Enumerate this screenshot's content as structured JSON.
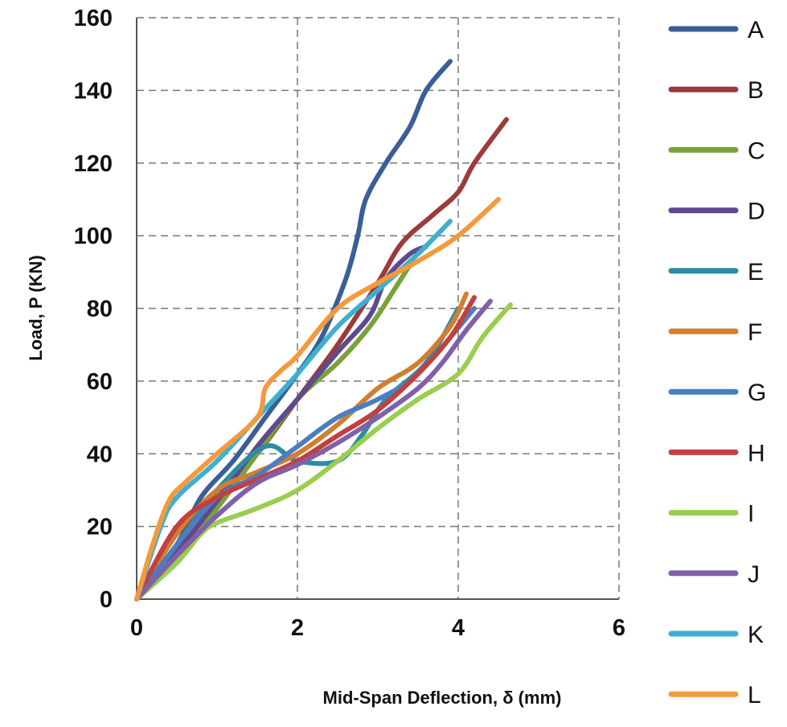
{
  "chart_data": {
    "type": "line",
    "title": "",
    "xlabel": "Mid-Span Deflection, δ (mm)",
    "ylabel": "Load, P (KN)",
    "xlim": [
      0,
      6
    ],
    "ylim": [
      0,
      160
    ],
    "xticks": [
      "0",
      "2",
      "4",
      "6"
    ],
    "yticks": [
      "0",
      "20",
      "40",
      "60",
      "80",
      "100",
      "120",
      "140",
      "160"
    ],
    "grid": true,
    "legend_position": "right",
    "series": [
      {
        "name": "A",
        "color": "#3A5F98",
        "x": [
          0,
          0.5,
          0.8,
          1.2,
          1.6,
          2,
          2.3,
          2.6,
          2.75,
          2.85,
          3.1,
          3.4,
          3.6,
          3.9
        ],
        "y": [
          0,
          15,
          28,
          38,
          50,
          62,
          72,
          88,
          100,
          110,
          120,
          130,
          140,
          148
        ]
      },
      {
        "name": "B",
        "color": "#9B3B3A",
        "x": [
          0,
          0.5,
          1,
          1.5,
          2,
          2.5,
          3,
          3.3,
          3.7,
          4,
          4.2,
          4.6
        ],
        "y": [
          0,
          18,
          28,
          40,
          55,
          70,
          87,
          98,
          106,
          112,
          120,
          132
        ]
      },
      {
        "name": "C",
        "color": "#78A23A",
        "x": [
          0,
          0.5,
          1,
          1.5,
          2,
          2.5,
          2.9,
          3.2,
          3.4
        ],
        "y": [
          0,
          12,
          25,
          40,
          55,
          65,
          75,
          85,
          92
        ]
      },
      {
        "name": "D",
        "color": "#5E4A8F",
        "x": [
          0,
          0.5,
          1,
          1.5,
          2,
          2.5,
          2.9,
          3.1,
          3.4,
          3.6
        ],
        "y": [
          0,
          13,
          27,
          42,
          55,
          68,
          78,
          88,
          95,
          97
        ]
      },
      {
        "name": "E",
        "color": "#2E8AA5",
        "x": [
          0,
          0.5,
          1,
          1.6,
          2,
          2.5,
          2.8,
          3.1,
          3.6,
          4.0
        ],
        "y": [
          0,
          15,
          30,
          42,
          38,
          38,
          45,
          55,
          65,
          80
        ]
      },
      {
        "name": "F",
        "color": "#D07E30",
        "x": [
          0,
          0.5,
          1,
          1.5,
          2,
          2.5,
          3,
          3.5,
          3.9,
          4.1
        ],
        "y": [
          0,
          18,
          30,
          35,
          40,
          48,
          58,
          65,
          75,
          84
        ]
      },
      {
        "name": "G",
        "color": "#4A7EC0",
        "x": [
          0,
          0.5,
          1,
          1.5,
          2,
          2.5,
          3,
          3.5,
          4.2
        ],
        "y": [
          0,
          15,
          28,
          34,
          42,
          50,
          55,
          62,
          80
        ]
      },
      {
        "name": "H",
        "color": "#C0413F",
        "x": [
          0,
          0.5,
          1,
          1.5,
          2,
          2.5,
          3,
          3.5,
          3.9,
          4.2
        ],
        "y": [
          0,
          20,
          28,
          33,
          38,
          45,
          52,
          62,
          72,
          83
        ]
      },
      {
        "name": "I",
        "color": "#9ACD50",
        "x": [
          0,
          0.5,
          0.8,
          1,
          1.5,
          2,
          2.5,
          3,
          3.5,
          4,
          4.3,
          4.65
        ],
        "y": [
          0,
          10,
          18,
          21,
          25,
          30,
          38,
          47,
          55,
          62,
          72,
          81
        ]
      },
      {
        "name": "J",
        "color": "#8060A8",
        "x": [
          0,
          0.5,
          1,
          1.5,
          2,
          2.5,
          3,
          3.5,
          3.8,
          4.1,
          4.4
        ],
        "y": [
          0,
          12,
          23,
          32,
          37,
          43,
          50,
          58,
          65,
          74,
          82
        ]
      },
      {
        "name": "K",
        "color": "#3FAFD0",
        "x": [
          0,
          0.3,
          0.5,
          1,
          1.5,
          2,
          2.5,
          3,
          3.5,
          3.9
        ],
        "y": [
          0,
          20,
          28,
          38,
          50,
          62,
          75,
          85,
          95,
          104
        ]
      },
      {
        "name": "L",
        "color": "#F39A3C",
        "x": [
          0,
          0.2,
          0.4,
          0.6,
          1,
          1.5,
          1.6,
          1.8,
          2,
          2.5,
          3,
          3.5,
          4,
          4.5
        ],
        "y": [
          0,
          15,
          27,
          32,
          40,
          50,
          58,
          63,
          67,
          80,
          87,
          93,
          100,
          110
        ]
      }
    ]
  }
}
